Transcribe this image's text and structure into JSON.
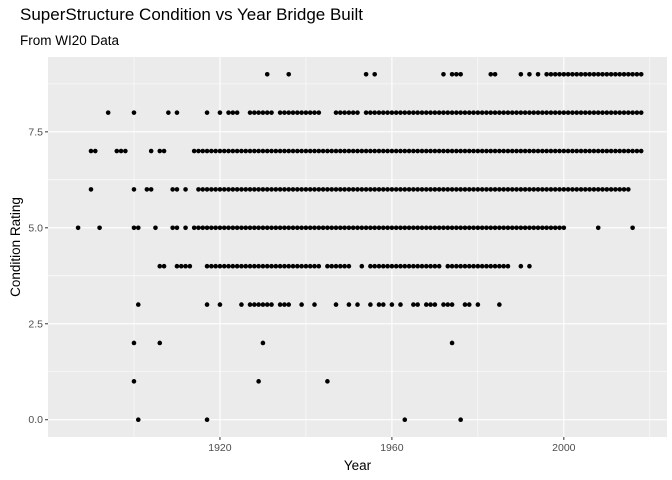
{
  "chart_data": {
    "type": "scatter",
    "title": "SuperStructure Condition vs Year Bridge Built",
    "subtitle": "From WI20 Data",
    "xlabel": "Year",
    "ylabel": "Condition Rating",
    "xlim": [
      1880,
      2024
    ],
    "ylim": [
      -0.45,
      9.45
    ],
    "x_ticks": [
      1920,
      1960,
      2000
    ],
    "x_tick_labels": [
      "1920",
      "1960",
      "2000"
    ],
    "y_ticks": [
      0,
      2.5,
      5,
      7.5
    ],
    "y_tick_labels": [
      "0.0",
      "2.5",
      "5.0",
      "7.5"
    ],
    "grid": true,
    "legend": "none",
    "point_color": "#000000",
    "panel_color": "#EBEBEB",
    "grid_color": "#FFFFFF",
    "rating_groups": [
      {
        "rating": 9,
        "years": [
          1931,
          1936,
          1954,
          1956,
          1972,
          1974,
          1975,
          1976,
          1983,
          1984,
          1990,
          1992,
          1994,
          1996,
          1997,
          1998,
          "1999-2018"
        ]
      },
      {
        "rating": 8,
        "years": [
          1894,
          1900,
          1908,
          1910,
          1917,
          1920,
          1922,
          1923,
          1924,
          1927,
          1928,
          1929,
          1930,
          1931,
          1932,
          1934,
          1935,
          1936,
          1937,
          1938,
          1939,
          1940,
          1941,
          1942,
          1943,
          1947,
          1948,
          1949,
          1950,
          1951,
          1952,
          1954,
          "1955-2018"
        ]
      },
      {
        "rating": 7,
        "years": [
          1890,
          1891,
          1896,
          1897,
          1898,
          1904,
          1906,
          1907,
          "1914-2018"
        ]
      },
      {
        "rating": 6,
        "years": [
          1890,
          1900,
          1903,
          1904,
          1909,
          1910,
          1912,
          "1915-2014",
          2015
        ]
      },
      {
        "rating": 5,
        "years": [
          1887,
          1892,
          1900,
          1901,
          1905,
          1909,
          1910,
          1912,
          "1914-2000",
          2008,
          2016
        ]
      },
      {
        "rating": 4,
        "years": [
          1906,
          1907,
          "1910-1913",
          "1917-1943",
          1945,
          1946,
          1947,
          1948,
          1949,
          1950,
          1953,
          "1955-1971",
          "1973-1987",
          1990,
          1992
        ]
      },
      {
        "rating": 3,
        "years": [
          1901,
          1917,
          1920,
          1925,
          1927,
          1928,
          1929,
          1930,
          1931,
          1932,
          1934,
          1935,
          1936,
          1939,
          1942,
          1947,
          1950,
          1952,
          1955,
          1957,
          1958,
          1960,
          1962,
          1965,
          1966,
          1968,
          1969,
          1970,
          1972,
          1973,
          1974,
          1977,
          1978,
          1980,
          1985
        ]
      },
      {
        "rating": 2,
        "years": [
          1900,
          1906,
          1930,
          1974
        ]
      },
      {
        "rating": 1,
        "years": [
          1900,
          1929,
          1945
        ]
      },
      {
        "rating": 0,
        "years": [
          1901,
          1917,
          1963,
          1976
        ]
      }
    ]
  }
}
